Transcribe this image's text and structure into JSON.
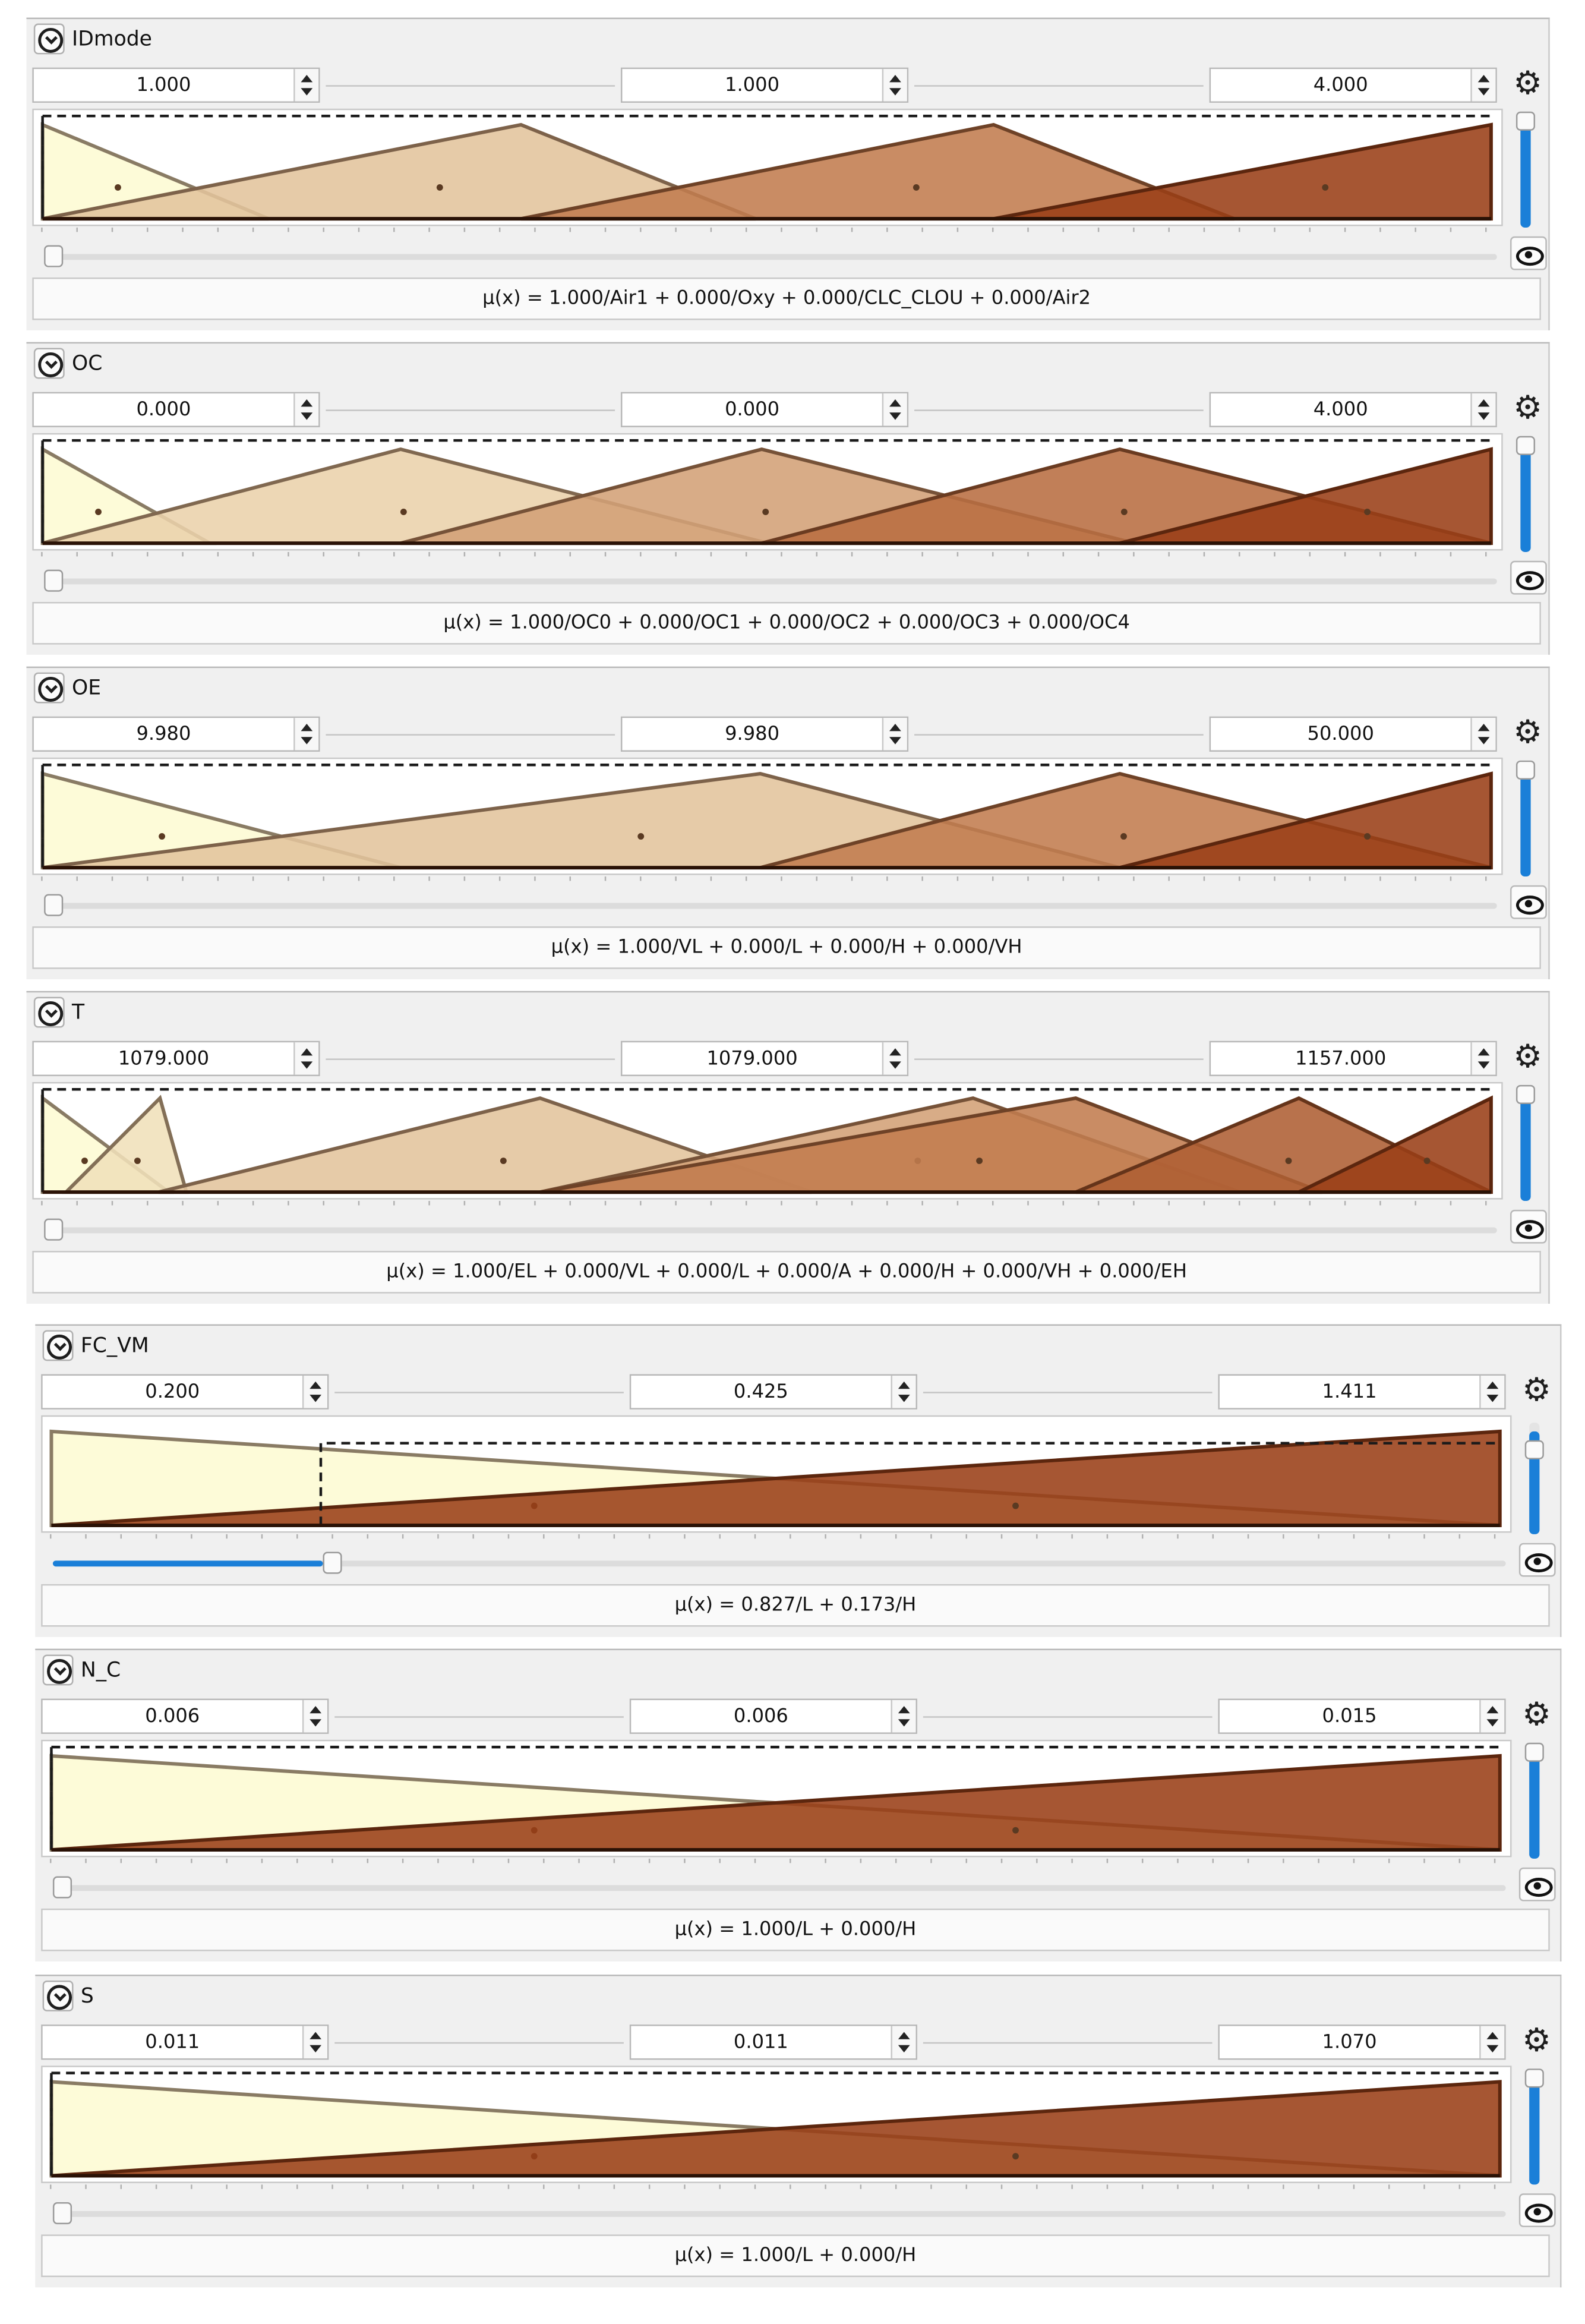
{
  "colors": {
    "mf_fills": [
      "#fdfbd8",
      "#e3c49c",
      "#c27c4f",
      "#9a3f17"
    ],
    "accent_blue": "#1a7fd8",
    "dash": "#1a1a1a"
  },
  "icons": {
    "collapse": "circle-chevron-down-icon",
    "spinner": "spin-arrows-icon",
    "settings": "gear-icon",
    "visibility": "eye-icon"
  },
  "variables": [
    {
      "name": "IDmode",
      "min_value": "1.000",
      "current_value": "1.000",
      "max_value": "4.000",
      "membership_text": "μ(x) = 1.000/Air1 + 0.000/Oxy + 0.000/CLC_CLOU + 0.000/Air2",
      "slider_fraction": 0.0,
      "mf_count": 4,
      "cutoff_fraction": 0.0
    },
    {
      "name": "OC",
      "min_value": "0.000",
      "current_value": "0.000",
      "max_value": "4.000",
      "membership_text": "μ(x) = 1.000/OC0 + 0.000/OC1 + 0.000/OC2 + 0.000/OC3 + 0.000/OC4",
      "slider_fraction": 0.0,
      "mf_count": 5,
      "cutoff_fraction": 0.0
    },
    {
      "name": "OE",
      "min_value": "9.980",
      "current_value": "9.980",
      "max_value": "50.000",
      "membership_text": "μ(x) = 1.000/VL + 0.000/L + 0.000/H + 0.000/VH",
      "slider_fraction": 0.0,
      "mf_count": 4,
      "cutoff_fraction": 0.0
    },
    {
      "name": "T",
      "min_value": "1079.000",
      "current_value": "1079.000",
      "max_value": "1157.000",
      "membership_text": "μ(x) = 1.000/EL + 0.000/VL + 0.000/L + 0.000/A + 0.000/H + 0.000/VH + 0.000/EH",
      "slider_fraction": 0.0,
      "mf_count": 7,
      "cutoff_fraction": 0.0
    },
    {
      "name": "FC_VM",
      "min_value": "0.200",
      "current_value": "0.425",
      "max_value": "1.411",
      "membership_text": "μ(x) = 0.827/L + 0.173/H",
      "slider_fraction": 0.186,
      "mf_count": 2,
      "cutoff_fraction": 0.186
    },
    {
      "name": "N_C",
      "min_value": "0.006",
      "current_value": "0.006",
      "max_value": "0.015",
      "membership_text": "μ(x) = 1.000/L + 0.000/H",
      "slider_fraction": 0.0,
      "mf_count": 2,
      "cutoff_fraction": 0.0
    },
    {
      "name": "S",
      "min_value": "0.011",
      "current_value": "0.011",
      "max_value": "1.070",
      "membership_text": "μ(x) = 1.000/L + 0.000/H",
      "slider_fraction": 0.0,
      "mf_count": 2,
      "cutoff_fraction": 0.0
    }
  ]
}
